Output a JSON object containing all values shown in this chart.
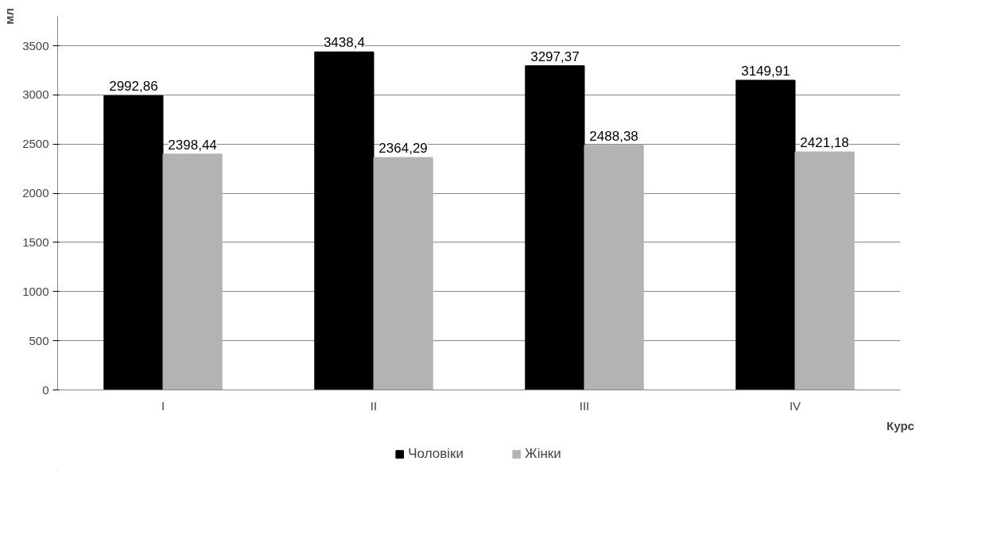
{
  "chart_data": {
    "type": "bar",
    "xlabel": "Курс",
    "ylabel": "мл",
    "categories": [
      "I",
      "II",
      "III",
      "IV"
    ],
    "series": [
      {
        "name": "Чоловіки",
        "color": "#000000",
        "values": [
          2992.86,
          3438.4,
          3297.37,
          3149.91
        ],
        "value_labels": [
          "2992,86",
          "3438,4",
          "3297,37",
          "3149,91"
        ]
      },
      {
        "name": "Жінки",
        "color": "#b3b3b3",
        "values": [
          2398.44,
          2364.29,
          2488.38,
          2421.18
        ],
        "value_labels": [
          "2398,44",
          "2364,29",
          "2488,38",
          "2421,18"
        ]
      }
    ],
    "ylim": [
      0,
      3800
    ],
    "yticks": [
      0,
      500,
      1000,
      1500,
      2000,
      2500,
      3000,
      3500
    ],
    "grid": "y",
    "legend": "bottom"
  }
}
